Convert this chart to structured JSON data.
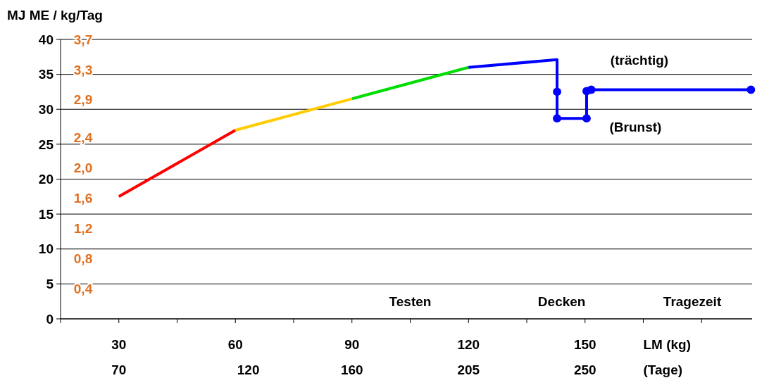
{
  "chart_data": {
    "type": "line",
    "ylabel": "MJ ME / kg/Tag",
    "xlabel": "LM (kg)",
    "x2label": "(Tage)",
    "xlim": [
      15,
      193
    ],
    "xticks": [
      {
        "value": 15,
        "label": null
      },
      30,
      {
        "value": 45,
        "label": null
      },
      60,
      {
        "value": 75,
        "label": null
      },
      90,
      {
        "value": 105,
        "label": null
      },
      120,
      {
        "value": 135,
        "label": null
      },
      150,
      {
        "value": 165,
        "label": null
      },
      {
        "value": 180,
        "label": null
      }
    ],
    "x2lim": [
      47.5,
      314.5
    ],
    "x2ticks": [
      70,
      120,
      160,
      205,
      250
    ],
    "ylim": [
      0,
      40
    ],
    "yticks": [
      0,
      5,
      10,
      15,
      20,
      25,
      30,
      35,
      40
    ],
    "y2lim": [
      0,
      3.7
    ],
    "y2ticks": [
      {
        "value": 0.4,
        "label": "0,4"
      },
      {
        "value": 0.8,
        "label": "0,8"
      },
      {
        "value": 1.2,
        "label": "1,2"
      },
      {
        "value": 1.6,
        "label": "1,6"
      },
      {
        "value": 2.0,
        "label": "2,0"
      },
      {
        "value": 2.4,
        "label": "2,4"
      },
      {
        "value": 2.9,
        "label": "2,9"
      },
      {
        "value": 3.3,
        "label": "3,3"
      },
      {
        "value": 3.7,
        "label": "3,7"
      }
    ],
    "grid": "y",
    "marker": "none",
    "series": [
      {
        "color": "#ff0000",
        "x": [
          30,
          60
        ],
        "values": [
          17.5,
          27
        ]
      },
      {
        "color": "#ffcc00",
        "x": [
          60,
          90
        ],
        "values": [
          27,
          31.5
        ]
      },
      {
        "color": "#00dd00",
        "x": [
          90,
          120
        ],
        "values": [
          31.5,
          36
        ]
      },
      {
        "color": "#0000ff",
        "x": [
          120,
          142.8,
          142.8,
          142.8,
          150.4,
          150.4,
          151.6,
          192.7
        ],
        "values": [
          36,
          37.1,
          32.5,
          28.7,
          28.7,
          32.6,
          32.8,
          32.8
        ]
      },
      {
        "type": "scatter",
        "marker": "circle",
        "color": "#0000ff",
        "x": [
          142.8,
          142.8,
          150.4,
          150.4,
          151.6,
          192.7
        ],
        "values": [
          32.5,
          28.7,
          28.7,
          32.6,
          32.8,
          32.8
        ]
      }
    ],
    "annotations": [
      "Testen",
      "Decken",
      "Tragezeit",
      "(trächtig)",
      "(Brunst)"
    ]
  }
}
